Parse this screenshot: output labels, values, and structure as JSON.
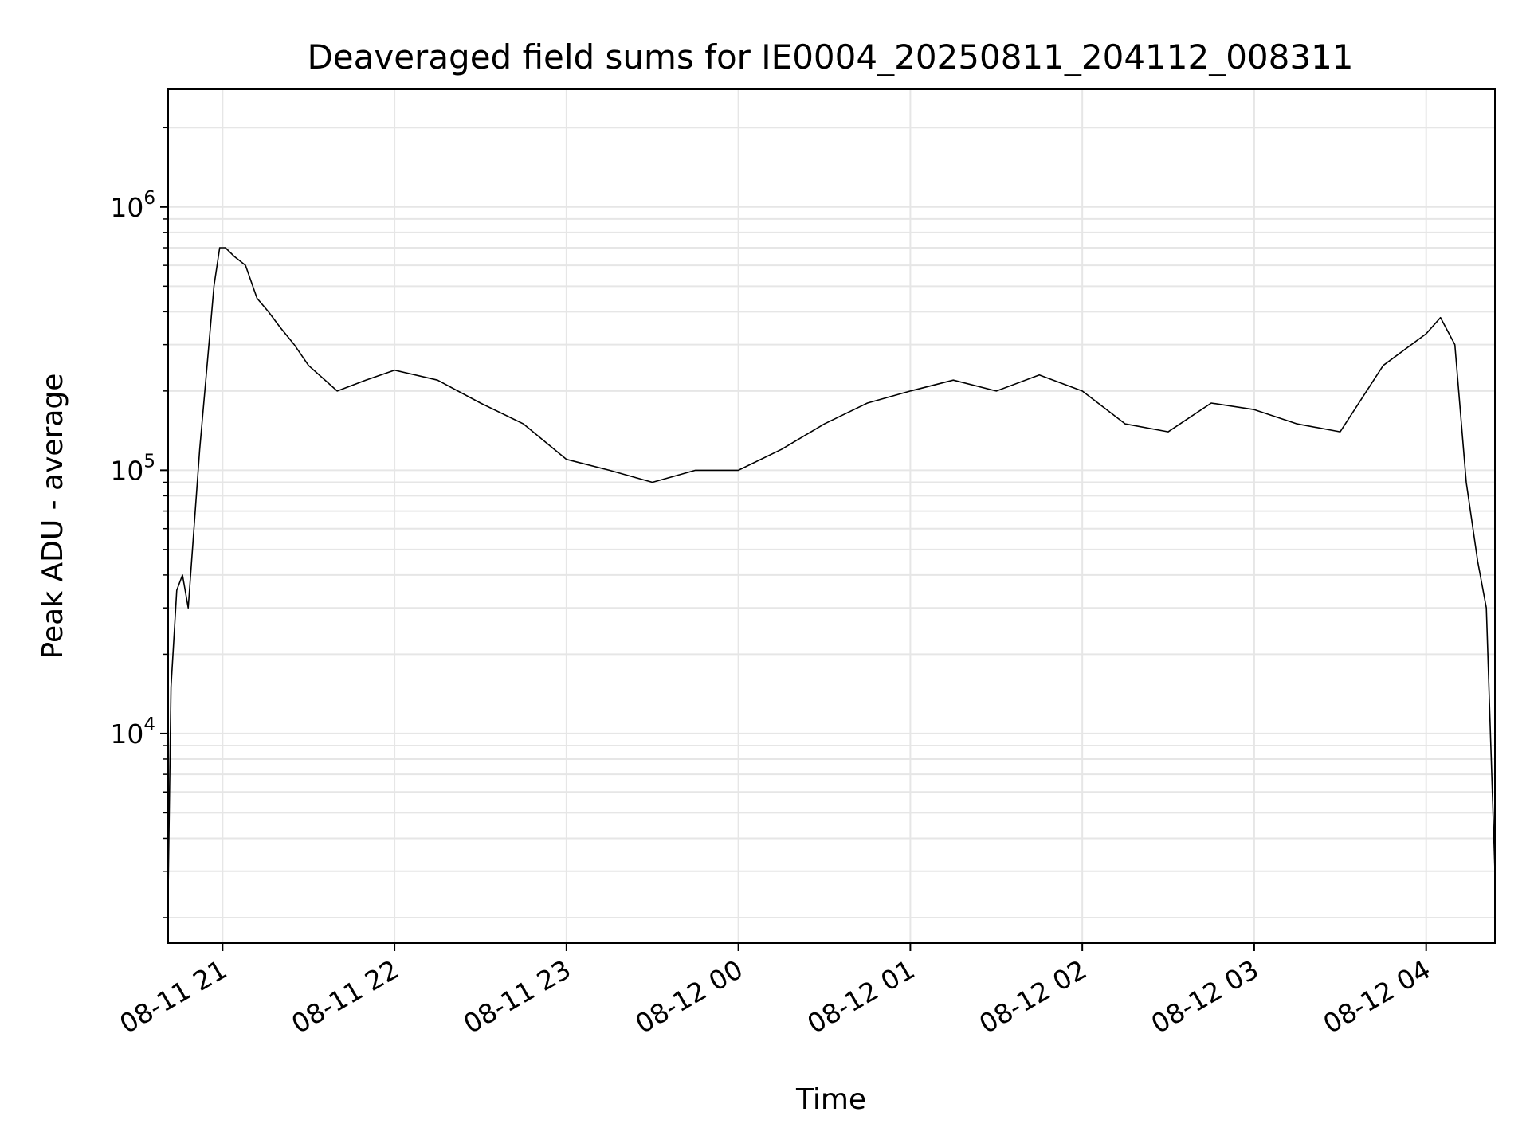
{
  "chart_data": {
    "type": "line",
    "title": "Deaveraged field sums for IE0004_20250811_204112_008311",
    "xlabel": "Time",
    "ylabel": "Peak ADU - average",
    "yscale": "log",
    "grid": "on (major and minor)",
    "x_ticks": [
      "08-11 21",
      "08-11 22",
      "08-11 23",
      "08-12 00",
      "08-12 01",
      "08-12 02",
      "08-12 03",
      "08-12 04"
    ],
    "y_ticks": [
      {
        "value": 10000,
        "base": "10",
        "exp": "4"
      },
      {
        "value": 100000,
        "base": "10",
        "exp": "5"
      },
      {
        "value": 1000000,
        "base": "10",
        "exp": "6"
      }
    ],
    "xlim": [
      "2025-08-11 20:41",
      "2025-08-12 04:24"
    ],
    "ylim": [
      1600,
      2800000
    ],
    "line_color": "#000000",
    "series": [
      {
        "x": [
          "2025-08-11 20:41",
          "2025-08-11 20:42",
          "2025-08-11 20:44",
          "2025-08-11 20:46",
          "2025-08-11 20:48",
          "2025-08-11 20:52",
          "2025-08-11 20:55",
          "2025-08-11 20:57",
          "2025-08-11 20:59",
          "2025-08-11 21:01",
          "2025-08-11 21:04",
          "2025-08-11 21:08",
          "2025-08-11 21:12",
          "2025-08-11 21:16",
          "2025-08-11 21:20",
          "2025-08-11 21:25",
          "2025-08-11 21:30",
          "2025-08-11 21:40",
          "2025-08-11 21:50",
          "2025-08-11 22:00",
          "2025-08-11 22:15",
          "2025-08-11 22:30",
          "2025-08-11 22:45",
          "2025-08-11 23:00",
          "2025-08-11 23:15",
          "2025-08-11 23:30",
          "2025-08-11 23:45",
          "2025-08-12 00:00",
          "2025-08-12 00:15",
          "2025-08-12 00:30",
          "2025-08-12 00:45",
          "2025-08-12 01:00",
          "2025-08-12 01:15",
          "2025-08-12 01:30",
          "2025-08-12 01:45",
          "2025-08-12 02:00",
          "2025-08-12 02:15",
          "2025-08-12 02:30",
          "2025-08-12 02:45",
          "2025-08-12 03:00",
          "2025-08-12 03:15",
          "2025-08-12 03:30",
          "2025-08-12 03:45",
          "2025-08-12 04:00",
          "2025-08-12 04:05",
          "2025-08-12 04:10",
          "2025-08-12 04:14",
          "2025-08-12 04:18",
          "2025-08-12 04:21",
          "2025-08-12 04:24"
        ],
        "y": [
          2500,
          15000,
          35000,
          40000,
          30000,
          120000,
          280000,
          500000,
          700000,
          700000,
          650000,
          600000,
          450000,
          400000,
          350000,
          300000,
          250000,
          200000,
          220000,
          240000,
          220000,
          180000,
          150000,
          110000,
          100000,
          90000,
          100000,
          100000,
          120000,
          150000,
          180000,
          200000,
          220000,
          200000,
          230000,
          200000,
          150000,
          140000,
          180000,
          170000,
          150000,
          140000,
          250000,
          330000,
          380000,
          300000,
          90000,
          45000,
          30000,
          3000
        ]
      }
    ]
  }
}
